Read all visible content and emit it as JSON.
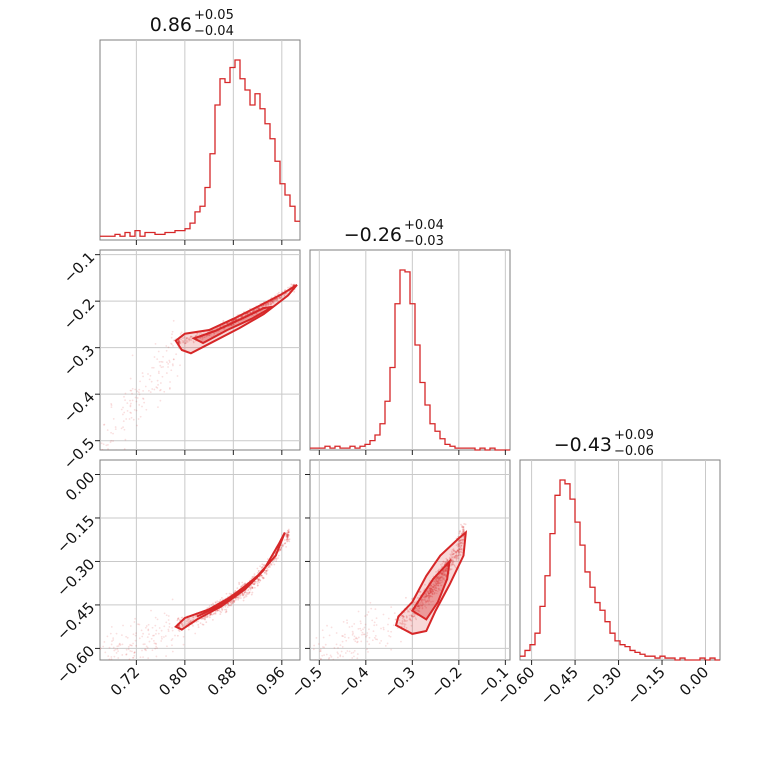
{
  "chart_data": {
    "type": "corner",
    "color": "#d62728",
    "parameters": [
      {
        "title": {
          "median": "0.86",
          "upper": "+0.05",
          "lower": "−0.04"
        },
        "range": [
          0.66,
          0.99
        ],
        "ticks": [
          {
            "value": 0.72,
            "label": "0.72"
          },
          {
            "value": 0.8,
            "label": "0.80"
          },
          {
            "value": 0.88,
            "label": "0.88"
          },
          {
            "value": 0.96,
            "label": "0.96"
          }
        ],
        "histogram": {
          "edges_start": 0.66,
          "bin_width": 0.00825,
          "counts": [
            2,
            2,
            2,
            3,
            2,
            4,
            2,
            5,
            2,
            4,
            4,
            3,
            3,
            4,
            4,
            5,
            5,
            6,
            9,
            15,
            18,
            28,
            46,
            72,
            86,
            84,
            92,
            96,
            86,
            80,
            72,
            78,
            70,
            62,
            54,
            42,
            30,
            24,
            18,
            10
          ]
        }
      },
      {
        "title": {
          "median": "−0.26",
          "upper": "+0.04",
          "lower": "−0.03"
        },
        "range": [
          -0.52,
          -0.09
        ],
        "ticks": [
          {
            "value": -0.5,
            "label": "−0.5"
          },
          {
            "value": -0.4,
            "label": "−0.4"
          },
          {
            "value": -0.3,
            "label": "−0.3"
          },
          {
            "value": -0.2,
            "label": "−0.2"
          },
          {
            "value": -0.1,
            "label": "−0.1"
          }
        ],
        "histogram": {
          "edges_start": -0.52,
          "bin_width": 0.01075,
          "counts": [
            1,
            1,
            1,
            2,
            1,
            2,
            1,
            1,
            2,
            1,
            2,
            3,
            5,
            8,
            14,
            26,
            44,
            78,
            96,
            95,
            78,
            56,
            36,
            24,
            14,
            10,
            6,
            3,
            2,
            1,
            1,
            1,
            1,
            0,
            1,
            0,
            1,
            0,
            0,
            0
          ]
        }
      },
      {
        "title": {
          "median": "−0.43",
          "upper": "+0.09",
          "lower": "−0.06"
        },
        "range": [
          -0.64,
          0.05
        ],
        "ticks": [
          {
            "value": -0.6,
            "label": "−0.60"
          },
          {
            "value": -0.45,
            "label": "−0.45"
          },
          {
            "value": -0.3,
            "label": "−0.30"
          },
          {
            "value": -0.15,
            "label": "−0.15"
          },
          {
            "value": 0.0,
            "label": "0.00"
          }
        ],
        "histogram": {
          "edges_start": -0.64,
          "bin_width": 0.01725,
          "counts": [
            2,
            5,
            8,
            14,
            28,
            44,
            66,
            86,
            94,
            92,
            84,
            72,
            60,
            46,
            38,
            30,
            26,
            20,
            14,
            10,
            8,
            7,
            5,
            4,
            3,
            2,
            2,
            1,
            2,
            1,
            1,
            0,
            1,
            0,
            0,
            0,
            1,
            0,
            1,
            0
          ]
        }
      }
    ],
    "pairs": [
      {
        "x_param": 0,
        "y_param": 1,
        "ridge": [
          [
            0.79,
            -0.29
          ],
          [
            0.83,
            -0.275
          ],
          [
            0.87,
            -0.25
          ],
          [
            0.91,
            -0.225
          ],
          [
            0.95,
            -0.195
          ],
          [
            0.98,
            -0.17
          ]
        ],
        "width": 0.025,
        "outer_contour": [
          [
            0.785,
            -0.285
          ],
          [
            0.8,
            -0.27
          ],
          [
            0.84,
            -0.262
          ],
          [
            0.88,
            -0.238
          ],
          [
            0.92,
            -0.212
          ],
          [
            0.96,
            -0.185
          ],
          [
            0.985,
            -0.165
          ],
          [
            0.97,
            -0.188
          ],
          [
            0.93,
            -0.228
          ],
          [
            0.89,
            -0.258
          ],
          [
            0.85,
            -0.285
          ],
          [
            0.81,
            -0.312
          ],
          [
            0.795,
            -0.305
          ]
        ],
        "inner_contour": [
          [
            0.815,
            -0.28
          ],
          [
            0.85,
            -0.264
          ],
          [
            0.89,
            -0.24
          ],
          [
            0.93,
            -0.215
          ],
          [
            0.945,
            -0.212
          ],
          [
            0.91,
            -0.238
          ],
          [
            0.87,
            -0.262
          ],
          [
            0.83,
            -0.29
          ]
        ]
      },
      {
        "x_param": 0,
        "y_param": 2,
        "ridge": [
          [
            0.79,
            -0.52
          ],
          [
            0.83,
            -0.49
          ],
          [
            0.87,
            -0.44
          ],
          [
            0.91,
            -0.38
          ],
          [
            0.94,
            -0.31
          ],
          [
            0.97,
            -0.21
          ]
        ],
        "width": 0.05,
        "outer_contour": [
          [
            0.785,
            -0.525
          ],
          [
            0.8,
            -0.495
          ],
          [
            0.84,
            -0.465
          ],
          [
            0.88,
            -0.418
          ],
          [
            0.92,
            -0.35
          ],
          [
            0.95,
            -0.28
          ],
          [
            0.965,
            -0.2
          ],
          [
            0.955,
            -0.24
          ],
          [
            0.93,
            -0.33
          ],
          [
            0.9,
            -0.395
          ],
          [
            0.86,
            -0.455
          ],
          [
            0.82,
            -0.5
          ],
          [
            0.795,
            -0.535
          ]
        ],
        "inner_contour": [
          [
            0.82,
            -0.49
          ],
          [
            0.86,
            -0.45
          ],
          [
            0.9,
            -0.39
          ],
          [
            0.93,
            -0.33
          ],
          [
            0.91,
            -0.37
          ],
          [
            0.87,
            -0.43
          ],
          [
            0.83,
            -0.48
          ]
        ]
      },
      {
        "x_param": 1,
        "y_param": 2,
        "ridge": [
          [
            -0.32,
            -0.5
          ],
          [
            -0.29,
            -0.46
          ],
          [
            -0.26,
            -0.4
          ],
          [
            -0.23,
            -0.33
          ],
          [
            -0.2,
            -0.26
          ],
          [
            -0.19,
            -0.2
          ]
        ],
        "width": 0.07,
        "outer_contour": [
          [
            -0.33,
            -0.49
          ],
          [
            -0.3,
            -0.44
          ],
          [
            -0.27,
            -0.35
          ],
          [
            -0.24,
            -0.28
          ],
          [
            -0.2,
            -0.22
          ],
          [
            -0.185,
            -0.2
          ],
          [
            -0.19,
            -0.28
          ],
          [
            -0.22,
            -0.38
          ],
          [
            -0.25,
            -0.47
          ],
          [
            -0.27,
            -0.54
          ],
          [
            -0.3,
            -0.55
          ],
          [
            -0.335,
            -0.52
          ]
        ],
        "inner_contour": [
          [
            -0.3,
            -0.47
          ],
          [
            -0.28,
            -0.42
          ],
          [
            -0.255,
            -0.36
          ],
          [
            -0.22,
            -0.3
          ],
          [
            -0.225,
            -0.36
          ],
          [
            -0.245,
            -0.44
          ],
          [
            -0.27,
            -0.5
          ]
        ]
      }
    ]
  }
}
